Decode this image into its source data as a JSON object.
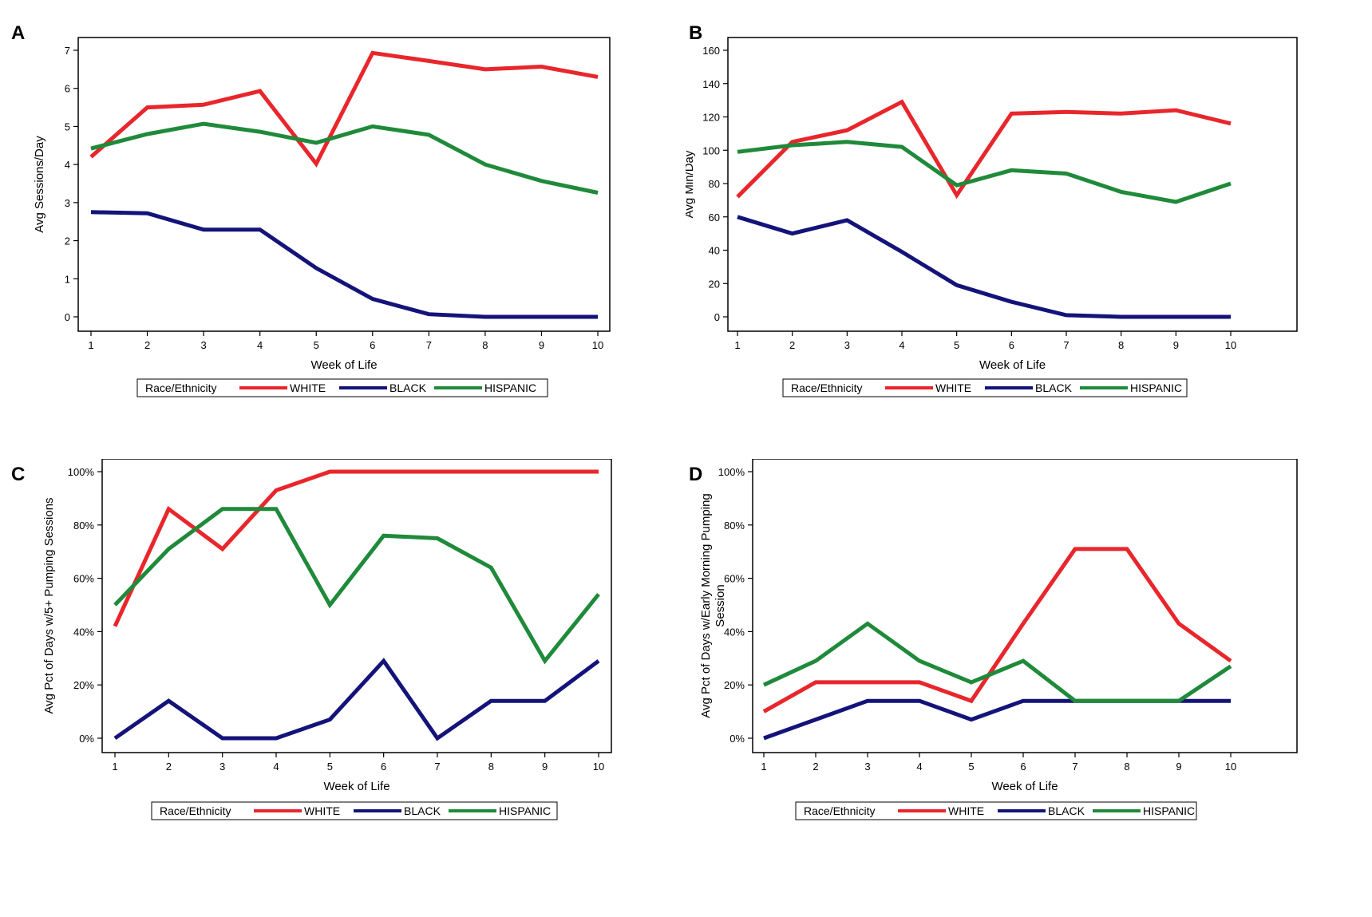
{
  "colors": {
    "WHITE": "#e8262b",
    "BLACK": "#14137a",
    "HISPANIC": "#1f8a3a",
    "axis": "#000000"
  },
  "chart_data": [
    {
      "panel": "A",
      "type": "line",
      "xlabel": "Week of Life",
      "ylabel": "Avg Sessions/Day",
      "x": [
        1,
        2,
        3,
        4,
        5,
        6,
        7,
        8,
        9,
        10
      ],
      "ylim": [
        0,
        7
      ],
      "yticks": [
        0,
        1,
        2,
        3,
        4,
        5,
        6,
        7
      ],
      "ytick_labels": [
        "0",
        "1",
        "2",
        "3",
        "4",
        "5",
        "6",
        "7"
      ],
      "legend_title": "Race/Ethnicity",
      "series": [
        {
          "name": "WHITE",
          "values": [
            4.2,
            5.5,
            5.57,
            5.93,
            4.02,
            6.93,
            6.72,
            6.5,
            6.57,
            6.3
          ]
        },
        {
          "name": "BLACK",
          "values": [
            2.75,
            2.72,
            2.29,
            2.29,
            1.28,
            0.47,
            0.07,
            0.0,
            0.0,
            0.0
          ]
        },
        {
          "name": "HISPANIC",
          "values": [
            4.42,
            4.8,
            5.07,
            4.86,
            4.57,
            5.0,
            4.78,
            4.0,
            3.57,
            3.26
          ]
        }
      ]
    },
    {
      "panel": "B",
      "type": "line",
      "xlabel": "Week of Life",
      "ylabel": "Avg Min/Day",
      "x": [
        1,
        2,
        3,
        4,
        5,
        6,
        7,
        8,
        9,
        10
      ],
      "ylim": [
        0,
        160
      ],
      "yticks": [
        0,
        20,
        40,
        60,
        80,
        100,
        120,
        140,
        160
      ],
      "ytick_labels": [
        "0",
        "20",
        "40",
        "60",
        "80",
        "100",
        "120",
        "140",
        "160"
      ],
      "legend_title": "Race/Ethnicity",
      "series": [
        {
          "name": "WHITE",
          "values": [
            72,
            105,
            112,
            129,
            73,
            122,
            123,
            122,
            124,
            116
          ]
        },
        {
          "name": "BLACK",
          "values": [
            60,
            50,
            58,
            39,
            19,
            9,
            1,
            0,
            0,
            0
          ]
        },
        {
          "name": "HISPANIC",
          "values": [
            99,
            103,
            105,
            102,
            79,
            88,
            86,
            75,
            69,
            80
          ]
        }
      ]
    },
    {
      "panel": "C",
      "type": "line",
      "xlabel": "Week of Life",
      "ylabel": "Avg Pct of Days w/5+ Pumping Sessions",
      "x": [
        1,
        2,
        3,
        4,
        5,
        6,
        7,
        8,
        9,
        10
      ],
      "ylim": [
        0,
        100
      ],
      "yticks": [
        0,
        20,
        40,
        60,
        80,
        100
      ],
      "ytick_labels": [
        "0%",
        "20%",
        "40%",
        "60%",
        "80%",
        "100%"
      ],
      "legend_title": "Race/Ethnicity",
      "series": [
        {
          "name": "WHITE",
          "values": [
            42,
            86,
            71,
            93,
            100,
            100,
            100,
            100,
            100,
            100
          ]
        },
        {
          "name": "BLACK",
          "values": [
            0,
            14,
            0,
            0,
            7,
            29,
            0,
            14,
            14,
            29
          ]
        },
        {
          "name": "HISPANIC",
          "values": [
            50,
            71,
            86,
            86,
            50,
            76,
            75,
            64,
            29,
            54
          ]
        }
      ]
    },
    {
      "panel": "D",
      "type": "line",
      "xlabel": "Week of Life",
      "ylabel": "Avg Pct of Days w/Early Morning Pumping Session",
      "ylabel_lines": [
        "Avg Pct of Days w/Early Morning Pumping",
        "Session"
      ],
      "x": [
        1,
        2,
        3,
        4,
        5,
        6,
        7,
        8,
        9,
        10
      ],
      "ylim": [
        0,
        100
      ],
      "yticks": [
        0,
        20,
        40,
        60,
        80,
        100
      ],
      "ytick_labels": [
        "0%",
        "20%",
        "40%",
        "60%",
        "80%",
        "100%"
      ],
      "legend_title": "Race/Ethnicity",
      "series": [
        {
          "name": "WHITE",
          "values": [
            10,
            21,
            21,
            21,
            14,
            43,
            71,
            71,
            43,
            29
          ]
        },
        {
          "name": "BLACK",
          "values": [
            0,
            7,
            14,
            14,
            7,
            14,
            14,
            14,
            14,
            14
          ]
        },
        {
          "name": "HISPANIC",
          "values": [
            20,
            29,
            43,
            29,
            21,
            29,
            14,
            14,
            14,
            27
          ]
        }
      ]
    }
  ]
}
